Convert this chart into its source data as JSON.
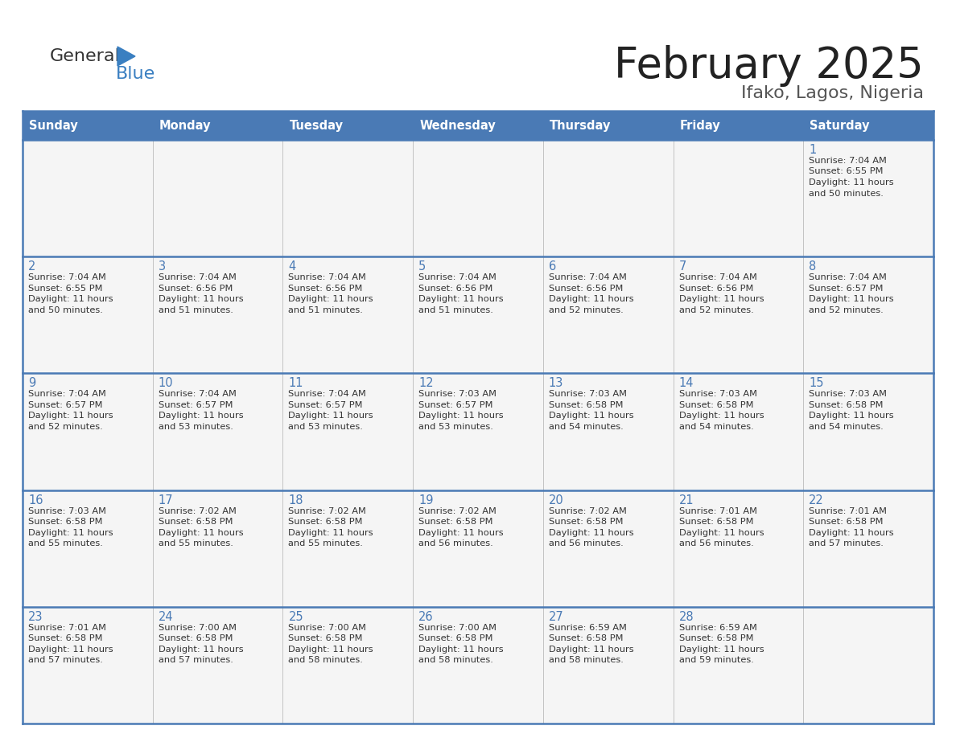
{
  "title": "February 2025",
  "subtitle": "Ifako, Lagos, Nigeria",
  "header_bg_color": "#4a7ab5",
  "header_text_color": "#FFFFFF",
  "cell_bg": "#f5f5f5",
  "day_number_color": "#4a7ab5",
  "text_color": "#333333",
  "border_color": "#4a7ab5",
  "days_of_week": [
    "Sunday",
    "Monday",
    "Tuesday",
    "Wednesday",
    "Thursday",
    "Friday",
    "Saturday"
  ],
  "calendar_data": [
    [
      null,
      null,
      null,
      null,
      null,
      null,
      {
        "day": 1,
        "sunrise": "7:04 AM",
        "sunset": "6:55 PM",
        "daylight": "11 hours and 50 minutes."
      }
    ],
    [
      {
        "day": 2,
        "sunrise": "7:04 AM",
        "sunset": "6:55 PM",
        "daylight": "11 hours and 50 minutes."
      },
      {
        "day": 3,
        "sunrise": "7:04 AM",
        "sunset": "6:56 PM",
        "daylight": "11 hours and 51 minutes."
      },
      {
        "day": 4,
        "sunrise": "7:04 AM",
        "sunset": "6:56 PM",
        "daylight": "11 hours and 51 minutes."
      },
      {
        "day": 5,
        "sunrise": "7:04 AM",
        "sunset": "6:56 PM",
        "daylight": "11 hours and 51 minutes."
      },
      {
        "day": 6,
        "sunrise": "7:04 AM",
        "sunset": "6:56 PM",
        "daylight": "11 hours and 52 minutes."
      },
      {
        "day": 7,
        "sunrise": "7:04 AM",
        "sunset": "6:56 PM",
        "daylight": "11 hours and 52 minutes."
      },
      {
        "day": 8,
        "sunrise": "7:04 AM",
        "sunset": "6:57 PM",
        "daylight": "11 hours and 52 minutes."
      }
    ],
    [
      {
        "day": 9,
        "sunrise": "7:04 AM",
        "sunset": "6:57 PM",
        "daylight": "11 hours and 52 minutes."
      },
      {
        "day": 10,
        "sunrise": "7:04 AM",
        "sunset": "6:57 PM",
        "daylight": "11 hours and 53 minutes."
      },
      {
        "day": 11,
        "sunrise": "7:04 AM",
        "sunset": "6:57 PM",
        "daylight": "11 hours and 53 minutes."
      },
      {
        "day": 12,
        "sunrise": "7:03 AM",
        "sunset": "6:57 PM",
        "daylight": "11 hours and 53 minutes."
      },
      {
        "day": 13,
        "sunrise": "7:03 AM",
        "sunset": "6:58 PM",
        "daylight": "11 hours and 54 minutes."
      },
      {
        "day": 14,
        "sunrise": "7:03 AM",
        "sunset": "6:58 PM",
        "daylight": "11 hours and 54 minutes."
      },
      {
        "day": 15,
        "sunrise": "7:03 AM",
        "sunset": "6:58 PM",
        "daylight": "11 hours and 54 minutes."
      }
    ],
    [
      {
        "day": 16,
        "sunrise": "7:03 AM",
        "sunset": "6:58 PM",
        "daylight": "11 hours and 55 minutes."
      },
      {
        "day": 17,
        "sunrise": "7:02 AM",
        "sunset": "6:58 PM",
        "daylight": "11 hours and 55 minutes."
      },
      {
        "day": 18,
        "sunrise": "7:02 AM",
        "sunset": "6:58 PM",
        "daylight": "11 hours and 55 minutes."
      },
      {
        "day": 19,
        "sunrise": "7:02 AM",
        "sunset": "6:58 PM",
        "daylight": "11 hours and 56 minutes."
      },
      {
        "day": 20,
        "sunrise": "7:02 AM",
        "sunset": "6:58 PM",
        "daylight": "11 hours and 56 minutes."
      },
      {
        "day": 21,
        "sunrise": "7:01 AM",
        "sunset": "6:58 PM",
        "daylight": "11 hours and 56 minutes."
      },
      {
        "day": 22,
        "sunrise": "7:01 AM",
        "sunset": "6:58 PM",
        "daylight": "11 hours and 57 minutes."
      }
    ],
    [
      {
        "day": 23,
        "sunrise": "7:01 AM",
        "sunset": "6:58 PM",
        "daylight": "11 hours and 57 minutes."
      },
      {
        "day": 24,
        "sunrise": "7:00 AM",
        "sunset": "6:58 PM",
        "daylight": "11 hours and 57 minutes."
      },
      {
        "day": 25,
        "sunrise": "7:00 AM",
        "sunset": "6:58 PM",
        "daylight": "11 hours and 58 minutes."
      },
      {
        "day": 26,
        "sunrise": "7:00 AM",
        "sunset": "6:58 PM",
        "daylight": "11 hours and 58 minutes."
      },
      {
        "day": 27,
        "sunrise": "6:59 AM",
        "sunset": "6:58 PM",
        "daylight": "11 hours and 58 minutes."
      },
      {
        "day": 28,
        "sunrise": "6:59 AM",
        "sunset": "6:58 PM",
        "daylight": "11 hours and 59 minutes."
      },
      null
    ]
  ]
}
